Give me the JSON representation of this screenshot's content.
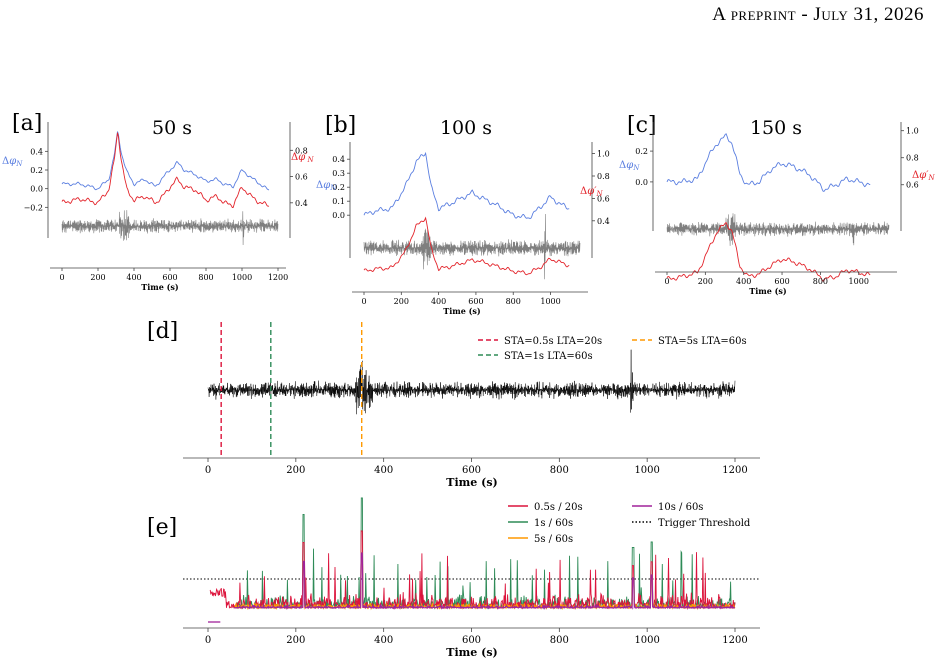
{
  "header": {
    "prefix": "A",
    "small_caps": "preprint",
    "sep": " - ",
    "date_first": "J",
    "date_small": "uly",
    "date_rest": " 31, 2026"
  },
  "colors": {
    "blue": "#5b7fe0",
    "red": "#e3242b",
    "gray": "#7f7f7f",
    "black": "#000000",
    "crimson": "#dc143c",
    "green": "#2e8b57",
    "orange": "#ff9900",
    "purple": "#a0229a"
  },
  "chart_data": [
    {
      "id": "a",
      "panel_label": "[a]",
      "title": "50 s",
      "type": "line",
      "xlabel": "Time (s)",
      "xlim": [
        -50,
        1200
      ],
      "xticks": [
        "0",
        "200",
        "400",
        "600",
        "800",
        "1000",
        "1200"
      ],
      "left_axis": {
        "label": "Δφ_N",
        "ticks": [
          "−0.2",
          "0.0",
          "0.2",
          "0.4"
        ]
      },
      "right_axis": {
        "label": "Δφ′_N",
        "ticks": [
          "0.4",
          "0.6",
          "0.8"
        ]
      },
      "series": [
        {
          "name": "Δφ_N",
          "color": "blue",
          "points": [
            [
              0,
              0.05
            ],
            [
              100,
              0.05
            ],
            [
              200,
              0.0
            ],
            [
              260,
              0.1
            ],
            [
              290,
              0.35
            ],
            [
              310,
              0.62
            ],
            [
              330,
              0.38
            ],
            [
              360,
              0.18
            ],
            [
              400,
              0.05
            ],
            [
              460,
              0.1
            ],
            [
              520,
              0.02
            ],
            [
              560,
              0.12
            ],
            [
              600,
              0.2
            ],
            [
              640,
              0.28
            ],
            [
              680,
              0.2
            ],
            [
              740,
              0.15
            ],
            [
              800,
              0.08
            ],
            [
              860,
              0.1
            ],
            [
              900,
              0.05
            ],
            [
              950,
              0.02
            ],
            [
              1000,
              0.2
            ],
            [
              1050,
              0.12
            ],
            [
              1100,
              0.05
            ],
            [
              1150,
              -0.02
            ]
          ]
        },
        {
          "name": "Δφ′_N",
          "color": "red",
          "points": [
            [
              0,
              0.4
            ],
            [
              100,
              0.43
            ],
            [
              200,
              0.4
            ],
            [
              260,
              0.5
            ],
            [
              290,
              0.72
            ],
            [
              310,
              0.95
            ],
            [
              330,
              0.72
            ],
            [
              360,
              0.5
            ],
            [
              400,
              0.42
            ],
            [
              460,
              0.45
            ],
            [
              520,
              0.4
            ],
            [
              560,
              0.45
            ],
            [
              600,
              0.52
            ],
            [
              640,
              0.58
            ],
            [
              680,
              0.52
            ],
            [
              740,
              0.5
            ],
            [
              800,
              0.42
            ],
            [
              860,
              0.45
            ],
            [
              900,
              0.4
            ],
            [
              950,
              0.38
            ],
            [
              1000,
              0.52
            ],
            [
              1050,
              0.45
            ],
            [
              1100,
              0.4
            ],
            [
              1150,
              0.38
            ]
          ]
        }
      ]
    },
    {
      "id": "b",
      "panel_label": "[b]",
      "title": "100 s",
      "type": "line",
      "xlabel": "Time (s)",
      "xlim": [
        -50,
        1150
      ],
      "xticks": [
        "0",
        "200",
        "400",
        "600",
        "800",
        "1000"
      ],
      "left_axis": {
        "label": "Δφ_N",
        "ticks": [
          "0.0",
          "0.1",
          "0.2",
          "0.3",
          "0.4"
        ]
      },
      "right_axis": {
        "label": "Δφ′_N",
        "ticks": [
          "0.4",
          "0.6",
          "0.8",
          "1.0"
        ]
      },
      "series": [
        {
          "name": "Δφ_N",
          "color": "blue",
          "points": [
            [
              0,
              0.0
            ],
            [
              60,
              0.03
            ],
            [
              150,
              0.05
            ],
            [
              220,
              0.2
            ],
            [
              280,
              0.38
            ],
            [
              330,
              0.45
            ],
            [
              360,
              0.2
            ],
            [
              400,
              0.05
            ],
            [
              460,
              0.08
            ],
            [
              520,
              0.12
            ],
            [
              580,
              0.16
            ],
            [
              620,
              0.13
            ],
            [
              700,
              0.08
            ],
            [
              800,
              0.0
            ],
            [
              880,
              -0.02
            ],
            [
              940,
              0.05
            ],
            [
              1000,
              0.13
            ],
            [
              1050,
              0.08
            ],
            [
              1100,
              0.05
            ]
          ]
        },
        {
          "name": "Δφ′_N",
          "color": "red",
          "points": [
            [
              0,
              -0.05
            ],
            [
              60,
              -0.03
            ],
            [
              150,
              -0.02
            ],
            [
              220,
              0.12
            ],
            [
              280,
              0.35
            ],
            [
              330,
              0.43
            ],
            [
              360,
              0.15
            ],
            [
              400,
              -0.03
            ],
            [
              460,
              -0.01
            ],
            [
              520,
              0.02
            ],
            [
              580,
              0.05
            ],
            [
              620,
              0.04
            ],
            [
              700,
              0.0
            ],
            [
              800,
              -0.05
            ],
            [
              880,
              -0.07
            ],
            [
              940,
              -0.02
            ],
            [
              1000,
              0.06
            ],
            [
              1050,
              0.03
            ],
            [
              1100,
              0.0
            ]
          ]
        }
      ]
    },
    {
      "id": "c",
      "panel_label": "[c]",
      "title": "150 s",
      "type": "line",
      "xlabel": "Time (s)",
      "xlim": [
        -50,
        1100
      ],
      "xticks": [
        "0",
        "200",
        "400",
        "600",
        "800",
        "1000"
      ],
      "left_axis": {
        "label": "Δφ_N",
        "ticks": [
          "0.0",
          "0.2"
        ]
      },
      "right_axis": {
        "label": "Δφ′_N",
        "ticks": [
          "0.6",
          "0.8",
          "1.0"
        ]
      },
      "series": [
        {
          "name": "Δφ_N",
          "color": "blue",
          "points": [
            [
              0,
              0.0
            ],
            [
              80,
              0.0
            ],
            [
              160,
              0.02
            ],
            [
              210,
              0.15
            ],
            [
              260,
              0.25
            ],
            [
              310,
              0.3
            ],
            [
              340,
              0.25
            ],
            [
              380,
              0.05
            ],
            [
              420,
              -0.02
            ],
            [
              480,
              0.0
            ],
            [
              540,
              0.08
            ],
            [
              600,
              0.12
            ],
            [
              660,
              0.1
            ],
            [
              740,
              0.05
            ],
            [
              820,
              -0.05
            ],
            [
              880,
              -0.02
            ],
            [
              940,
              0.02
            ],
            [
              1000,
              0.0
            ],
            [
              1060,
              -0.02
            ]
          ]
        },
        {
          "name": "Δφ′_N",
          "color": "red",
          "points": [
            [
              0,
              -0.1
            ],
            [
              80,
              -0.08
            ],
            [
              160,
              -0.05
            ],
            [
              210,
              0.1
            ],
            [
              260,
              0.25
            ],
            [
              310,
              0.32
            ],
            [
              340,
              0.25
            ],
            [
              380,
              0.0
            ],
            [
              420,
              -0.08
            ],
            [
              480,
              -0.06
            ],
            [
              540,
              0.0
            ],
            [
              600,
              0.05
            ],
            [
              660,
              0.03
            ],
            [
              740,
              -0.02
            ],
            [
              820,
              -0.1
            ],
            [
              880,
              -0.08
            ],
            [
              940,
              -0.03
            ],
            [
              1000,
              -0.05
            ],
            [
              1060,
              -0.07
            ]
          ]
        }
      ]
    },
    {
      "id": "d",
      "panel_label": "[d]",
      "type": "line",
      "xlabel": "Time (s)",
      "xlim": [
        -60,
        1255
      ],
      "xticks": [
        "0",
        "200",
        "400",
        "600",
        "800",
        "1000",
        "1200"
      ],
      "legend": [
        "STA=0.5s LTA=20s",
        "STA=1s LTA=60s",
        "STA=5s LTA=60s"
      ],
      "legend_position": "top-right",
      "trigger_lines": [
        {
          "name": "STA=0.5s LTA=20s",
          "x": 30,
          "color": "crimson"
        },
        {
          "name": "STA=1s LTA=60s",
          "x": 143,
          "color": "green"
        },
        {
          "name": "STA=5s LTA=60s",
          "x": 350,
          "color": "orange"
        }
      ]
    },
    {
      "id": "e",
      "panel_label": "[e]",
      "type": "line",
      "xlabel": "Time (s)",
      "xlim": [
        -60,
        1255
      ],
      "xticks": [
        "0",
        "200",
        "400",
        "600",
        "800",
        "1000",
        "1200"
      ],
      "legend": [
        "0.5s / 20s",
        "1s / 60s",
        "5s / 60s",
        "10s / 60s",
        "Trigger Threshold"
      ],
      "legend_position": "top-right",
      "series": [
        {
          "name": "0.5s / 20s",
          "color": "crimson"
        },
        {
          "name": "1s / 60s",
          "color": "green"
        },
        {
          "name": "5s / 60s",
          "color": "orange"
        },
        {
          "name": "10s / 60s",
          "color": "purple"
        },
        {
          "name": "Trigger Threshold",
          "color": "black",
          "style": "dotted"
        }
      ],
      "peaks": [
        [
          218,
          0.85
        ],
        [
          350,
          1.0
        ],
        [
          968,
          0.55
        ],
        [
          1010,
          0.6
        ]
      ]
    }
  ]
}
